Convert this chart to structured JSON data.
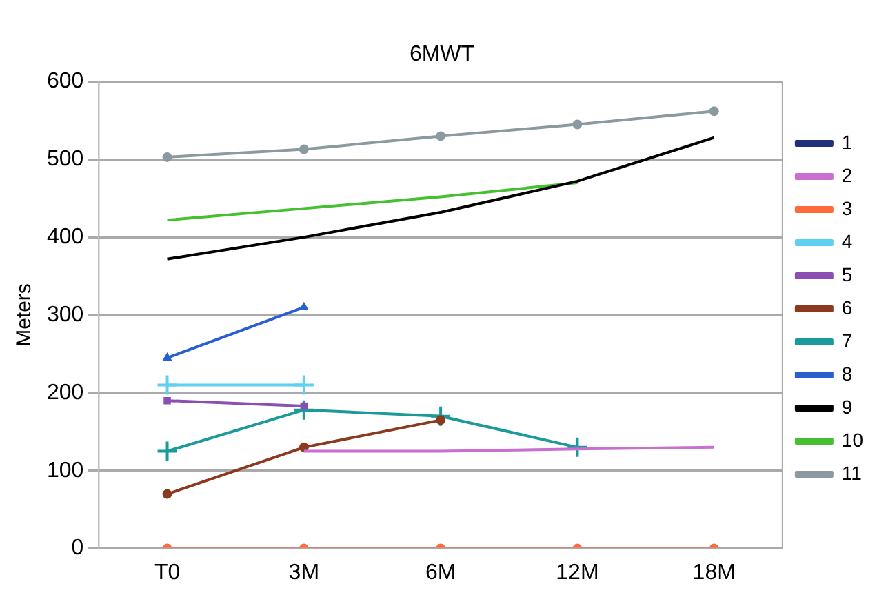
{
  "chart_data": {
    "type": "line",
    "title": "6MWT",
    "ylabel": "Meters",
    "categories": [
      "T0",
      "3M",
      "6M",
      "12M",
      "18M"
    ],
    "ylim": [
      0,
      600
    ],
    "yticks": [
      0,
      100,
      200,
      300,
      400,
      500,
      600
    ],
    "grid": "y",
    "legend": "right",
    "series": [
      {
        "name": "1",
        "color": "#1f2f7a",
        "marker": "diamond",
        "values": [
          null,
          null,
          null,
          null,
          null
        ]
      },
      {
        "name": "2",
        "color": "#c86fd0",
        "marker": "none",
        "values": [
          null,
          125,
          125,
          128,
          130
        ]
      },
      {
        "name": "3",
        "color": "#ff6a3c",
        "marker": "circle",
        "values": [
          0,
          0,
          0,
          0,
          0
        ]
      },
      {
        "name": "4",
        "color": "#5fd0f0",
        "marker": "cross",
        "values": [
          210,
          210,
          null,
          null,
          null
        ]
      },
      {
        "name": "5",
        "color": "#8a4fb0",
        "marker": "square",
        "values": [
          190,
          183,
          null,
          null,
          null
        ]
      },
      {
        "name": "6",
        "color": "#8b3a1e",
        "marker": "circle",
        "values": [
          70,
          130,
          165,
          null,
          null
        ]
      },
      {
        "name": "7",
        "color": "#1a9a9a",
        "marker": "cross",
        "values": [
          125,
          178,
          170,
          130,
          null
        ]
      },
      {
        "name": "8",
        "color": "#2a5fd0",
        "marker": "triangle",
        "values": [
          245,
          310,
          null,
          null,
          null
        ]
      },
      {
        "name": "9",
        "color": "#000000",
        "marker": "none",
        "values": [
          372,
          400,
          432,
          472,
          528
        ]
      },
      {
        "name": "10",
        "color": "#44c030",
        "marker": "none",
        "values": [
          422,
          437,
          452,
          470,
          null
        ]
      },
      {
        "name": "11",
        "color": "#8a9aa0",
        "marker": "circle",
        "values": [
          503,
          513,
          530,
          545,
          562
        ]
      }
    ]
  }
}
